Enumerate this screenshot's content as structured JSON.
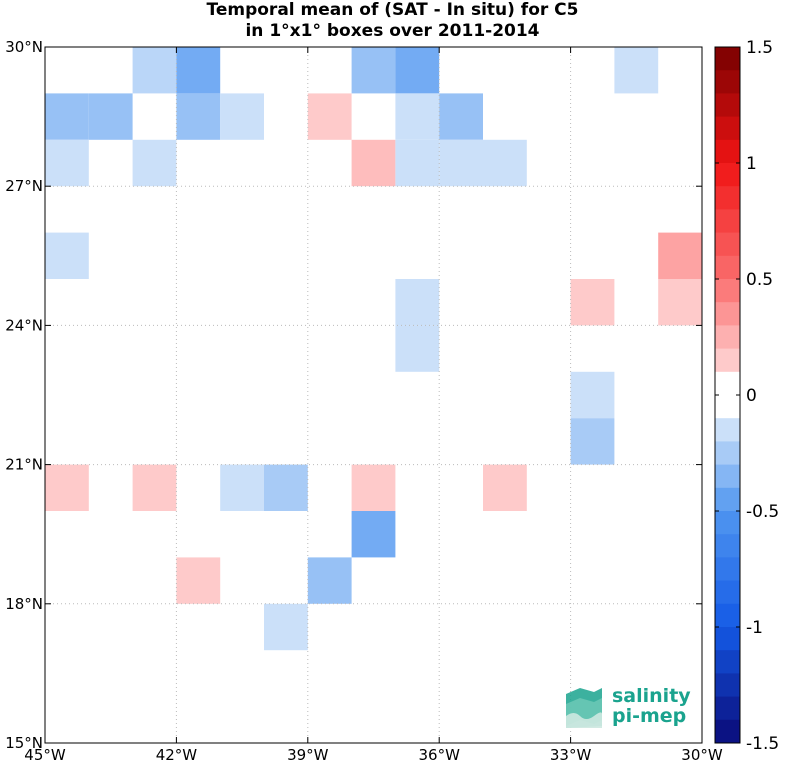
{
  "chart_data": {
    "type": "heatmap",
    "title": "Temporal mean of (SAT - In situ) for C5",
    "subtitle": "in 1°x1° boxes over 2011-2014",
    "x_range_deg_west": [
      45,
      30
    ],
    "y_range_deg_north": [
      15,
      30
    ],
    "x_ticks": [
      "45°W",
      "42°W",
      "39°W",
      "36°W",
      "33°W",
      "30°W"
    ],
    "y_ticks": [
      "15°N",
      "18°N",
      "21°N",
      "24°N",
      "27°N",
      "30°N"
    ],
    "grid": true,
    "colorbar": {
      "min": -1.5,
      "max": 1.5,
      "step": 0.1,
      "ticks": [
        "1.5",
        "1",
        "0.5",
        "0",
        "-0.5",
        "-1",
        "-1.5"
      ],
      "tick_values": [
        1.5,
        1,
        0.5,
        0,
        -0.5,
        -1,
        -1.5
      ]
    },
    "cells": [
      {
        "lon_w": 43,
        "lat_n": 29,
        "value": -0.2
      },
      {
        "lon_w": 42,
        "lat_n": 29,
        "value": -0.4
      },
      {
        "lon_w": 38,
        "lat_n": 29,
        "value": -0.3
      },
      {
        "lon_w": 37,
        "lat_n": 29,
        "value": -0.4
      },
      {
        "lon_w": 32,
        "lat_n": 29,
        "value": -0.15
      },
      {
        "lon_w": 45,
        "lat_n": 28,
        "value": -0.3
      },
      {
        "lon_w": 44,
        "lat_n": 28,
        "value": -0.3
      },
      {
        "lon_w": 42,
        "lat_n": 28,
        "value": -0.3
      },
      {
        "lon_w": 41,
        "lat_n": 28,
        "value": -0.15
      },
      {
        "lon_w": 39,
        "lat_n": 28,
        "value": 0.15
      },
      {
        "lon_w": 37,
        "lat_n": 28,
        "value": -0.15
      },
      {
        "lon_w": 36,
        "lat_n": 28,
        "value": -0.3
      },
      {
        "lon_w": 45,
        "lat_n": 27,
        "value": -0.15
      },
      {
        "lon_w": 43,
        "lat_n": 27,
        "value": -0.15
      },
      {
        "lon_w": 38,
        "lat_n": 27,
        "value": 0.2
      },
      {
        "lon_w": 37,
        "lat_n": 27,
        "value": -0.15
      },
      {
        "lon_w": 36,
        "lat_n": 27,
        "value": -0.15
      },
      {
        "lon_w": 35,
        "lat_n": 27,
        "value": -0.15
      },
      {
        "lon_w": 45,
        "lat_n": 25,
        "value": -0.15
      },
      {
        "lon_w": 31,
        "lat_n": 25,
        "value": 0.3
      },
      {
        "lon_w": 37,
        "lat_n": 24,
        "value": -0.15
      },
      {
        "lon_w": 33,
        "lat_n": 24,
        "value": 0.15
      },
      {
        "lon_w": 31,
        "lat_n": 24,
        "value": 0.15
      },
      {
        "lon_w": 37,
        "lat_n": 23,
        "value": -0.15
      },
      {
        "lon_w": 33,
        "lat_n": 22,
        "value": -0.15
      },
      {
        "lon_w": 33,
        "lat_n": 21,
        "value": -0.25
      },
      {
        "lon_w": 45,
        "lat_n": 20,
        "value": 0.15
      },
      {
        "lon_w": 43,
        "lat_n": 20,
        "value": 0.15
      },
      {
        "lon_w": 41,
        "lat_n": 20,
        "value": -0.15
      },
      {
        "lon_w": 40,
        "lat_n": 20,
        "value": -0.25
      },
      {
        "lon_w": 38,
        "lat_n": 20,
        "value": 0.15
      },
      {
        "lon_w": 35,
        "lat_n": 20,
        "value": 0.15
      },
      {
        "lon_w": 38,
        "lat_n": 19,
        "value": -0.4
      },
      {
        "lon_w": 42,
        "lat_n": 18,
        "value": 0.15
      },
      {
        "lon_w": 39,
        "lat_n": 18,
        "value": -0.3
      },
      {
        "lon_w": 40,
        "lat_n": 17,
        "value": -0.15
      }
    ]
  },
  "logo": {
    "line1": "salinity",
    "line2": "pi-mep"
  },
  "colors": {
    "logo_text": "#1aa38e",
    "grid": "#bbbbbb",
    "axis": "#000000"
  }
}
